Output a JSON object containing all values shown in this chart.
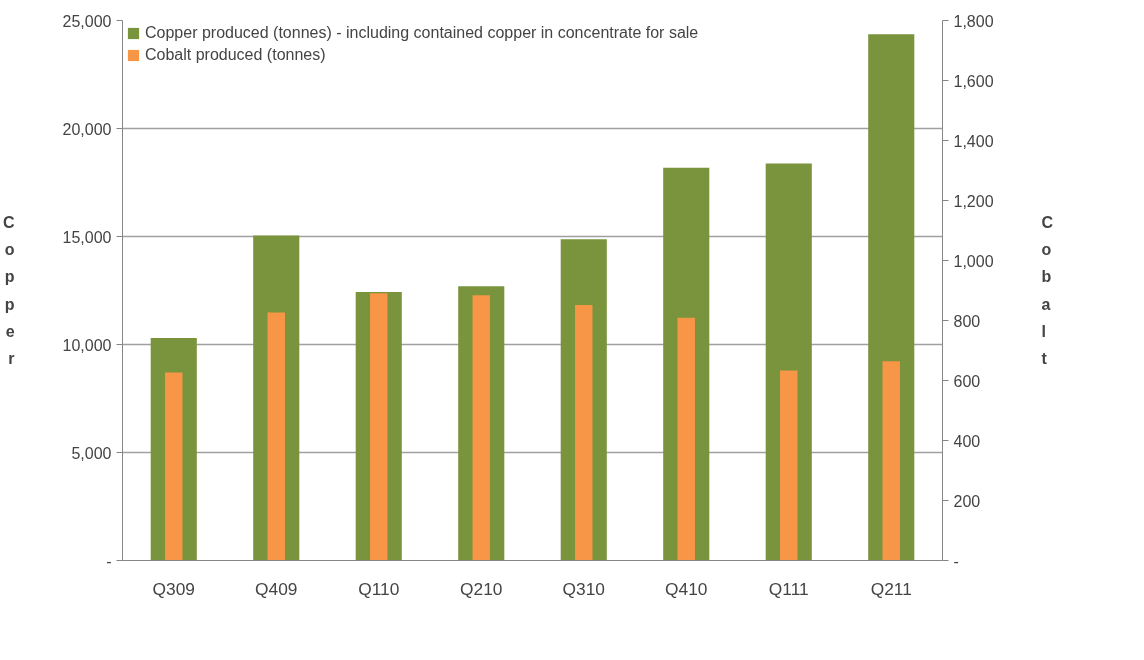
{
  "chart_data": {
    "type": "bar",
    "ylabel": "Copper",
    "y2label": "Cobalt",
    "categories": [
      "Q309",
      "Q409",
      "Q110",
      "Q210",
      "Q310",
      "Q410",
      "Q111",
      "Q211"
    ],
    "series": [
      {
        "name": "Copper produced (tonnes) - including contained copper in concentrate for sale",
        "color": "#7a943d",
        "values": [
          10300,
          15050,
          12430,
          12700,
          14870,
          18180,
          18380,
          24360
        ]
      },
      {
        "name": "Cobalt produced (tonnes)",
        "color": "#f79646",
        "axis": "y2",
        "values": [
          627,
          827,
          891,
          884,
          852,
          809,
          633,
          664
        ]
      }
    ],
    "ylim": [
      0,
      25000
    ],
    "yticks": [
      {
        "value": 0,
        "label": "-"
      },
      {
        "value": 5000,
        "label": "5,000"
      },
      {
        "value": 10000,
        "label": "10,000"
      },
      {
        "value": 15000,
        "label": "15,000"
      },
      {
        "value": 20000,
        "label": "20,000"
      },
      {
        "value": 25000,
        "label": "25,000"
      }
    ],
    "y2lim": [
      0,
      1800
    ],
    "y2ticks": [
      {
        "value": 0,
        "label": "-"
      },
      {
        "value": 200,
        "label": "200"
      },
      {
        "value": 400,
        "label": "400"
      },
      {
        "value": 600,
        "label": "600"
      },
      {
        "value": 800,
        "label": "800"
      },
      {
        "value": 1000,
        "label": "1,000"
      },
      {
        "value": 1200,
        "label": "1,200"
      },
      {
        "value": 1400,
        "label": "1,400"
      },
      {
        "value": 1600,
        "label": "1,600"
      },
      {
        "value": 1800,
        "label": "1,800"
      }
    ],
    "grid": "y",
    "legend": "top left"
  }
}
